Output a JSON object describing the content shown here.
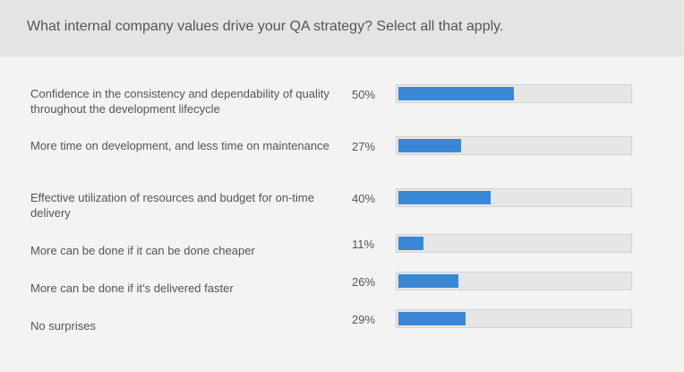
{
  "question": "What internal company values drive your QA strategy? Select all that apply.",
  "colors": {
    "bar": "#3a87d6",
    "track": "#e6e6e6",
    "header": "#e4e4e4",
    "background": "#f3f3f3"
  },
  "chart_data": {
    "type": "bar",
    "orientation": "horizontal",
    "title": "What internal company values drive your QA strategy? Select all that apply.",
    "categories": [
      "Confidence in the consistency and dependability of quality throughout the development lifecycle",
      "More time on development, and less time on maintenance",
      "Effective utilization of resources and budget for on-time delivery",
      "More can be done if it can be done cheaper",
      "More can be done if it’s delivered faster",
      "No surprises"
    ],
    "values": [
      50,
      27,
      40,
      11,
      26,
      29
    ],
    "value_labels": [
      "50%",
      "27%",
      "40%",
      "11%",
      "26%",
      "29%"
    ],
    "ylim": [
      0,
      100
    ],
    "grid": false,
    "legend": "none"
  }
}
